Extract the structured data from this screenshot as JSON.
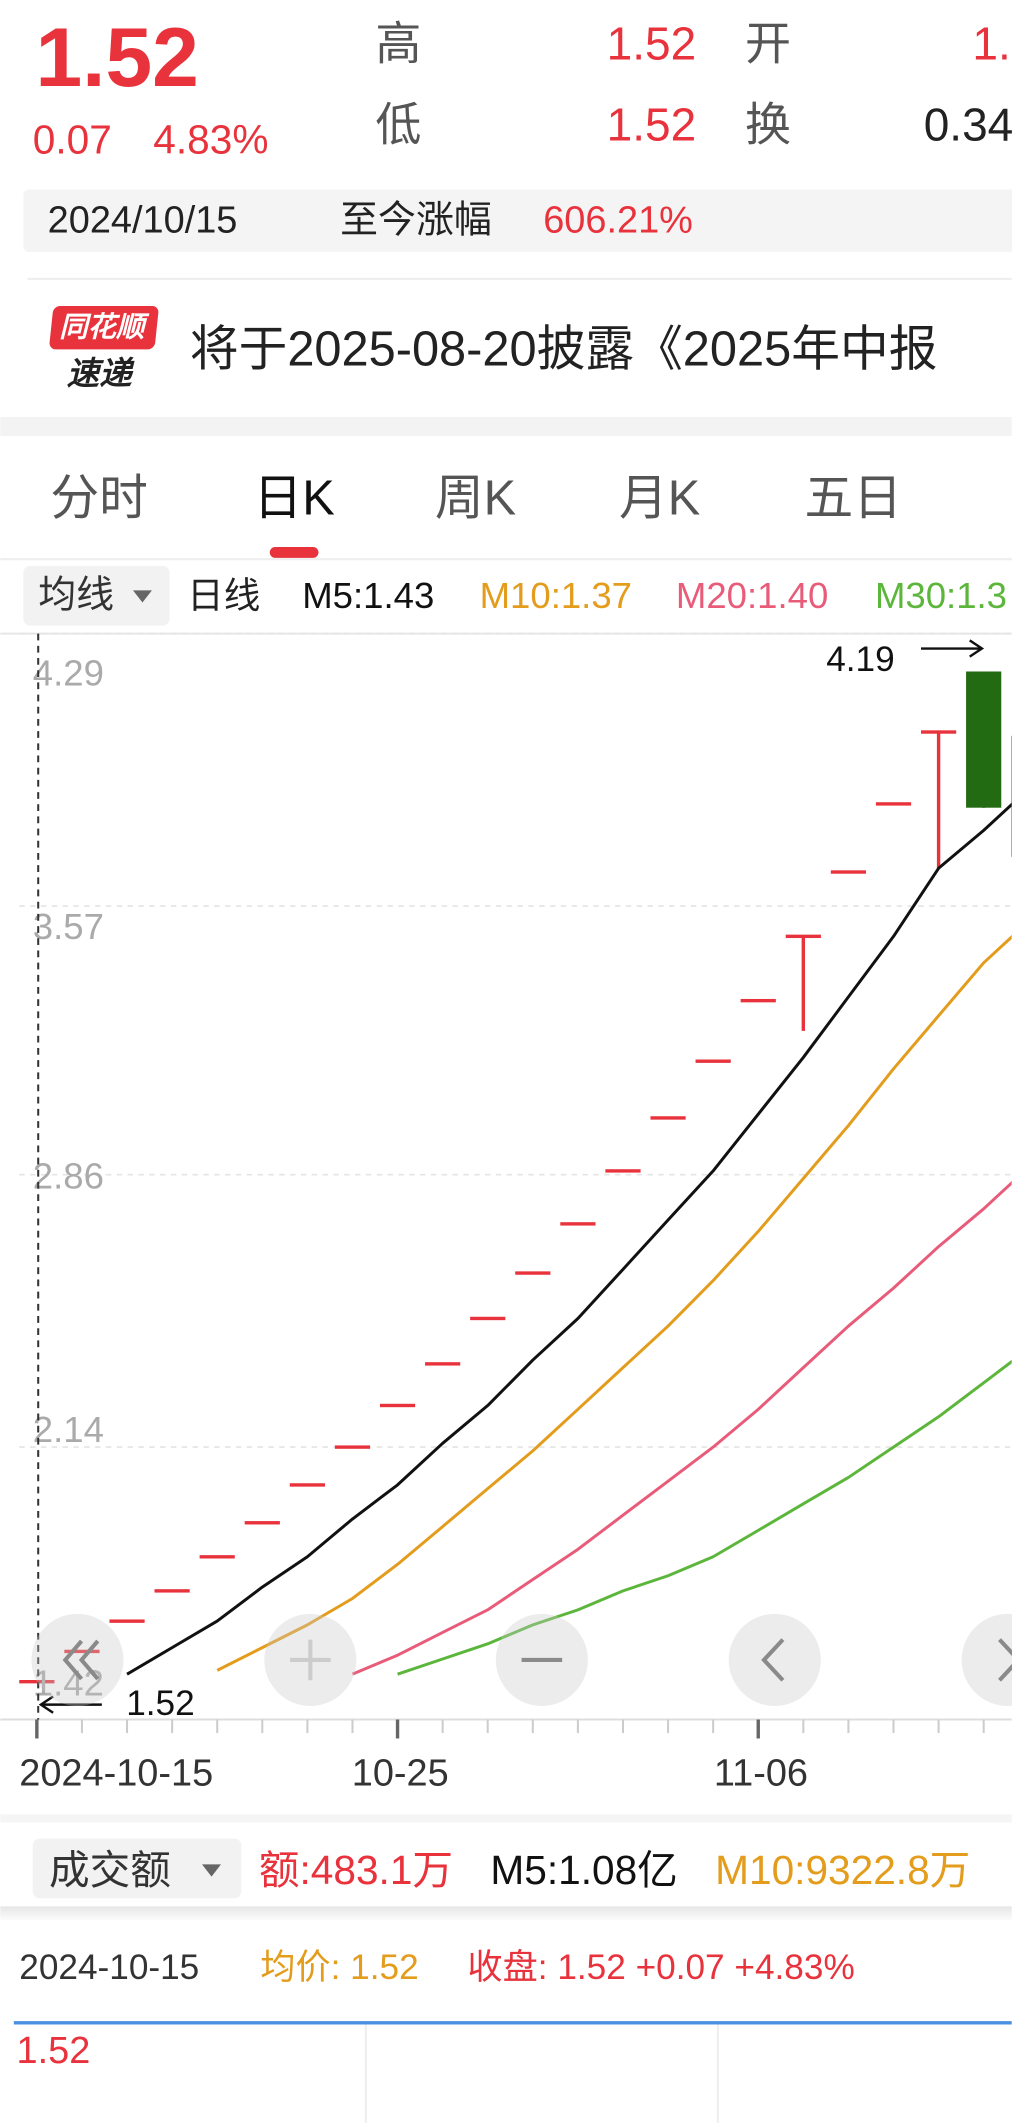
{
  "quote": {
    "price": "1.52",
    "change": "0.07",
    "change_pct": "4.83%",
    "high_label": "高",
    "high": "1.52",
    "open_label": "开",
    "open": "1.",
    "low_label": "低",
    "low": "1.52",
    "turnover_label": "换",
    "turnover": "0.34"
  },
  "since": {
    "date": "2024/10/15",
    "label": "至今涨幅",
    "value": "606.21%"
  },
  "news": {
    "logo_top": "同花顺",
    "logo_bottom": "速递",
    "text": "将于2025-08-20披露《2025年中报"
  },
  "tabs": [
    "分时",
    "日K",
    "周K",
    "月K",
    "五日"
  ],
  "ma_bar": {
    "button": "均线",
    "period": "日线",
    "m5": "M5:1.43",
    "m10": "M10:1.37",
    "m20": "M20:1.40",
    "m30": "M30:1.3"
  },
  "chart_data": {
    "type": "candlestick",
    "categories": [
      "2024-10-15",
      null,
      null,
      null,
      null,
      null,
      null,
      null,
      "10-25",
      null,
      null,
      null,
      null,
      null,
      null,
      null,
      "11-06",
      null,
      null,
      null,
      null,
      null,
      null
    ],
    "open": [
      1.52,
      1.6,
      1.68,
      1.76,
      1.85,
      1.94,
      2.04,
      2.14,
      2.25,
      2.36,
      2.48,
      2.6,
      2.73,
      2.87,
      3.01,
      3.16,
      3.32,
      3.49,
      3.66,
      3.84,
      4.03,
      4.19,
      3.7
    ],
    "high": [
      1.52,
      1.6,
      1.68,
      1.76,
      1.85,
      1.94,
      2.04,
      2.14,
      2.25,
      2.36,
      2.48,
      2.6,
      2.73,
      2.87,
      3.01,
      3.16,
      3.32,
      3.49,
      3.66,
      3.84,
      4.03,
      4.19,
      4.02
    ],
    "low": [
      1.52,
      1.6,
      1.68,
      1.76,
      1.85,
      1.94,
      2.04,
      2.14,
      2.25,
      2.36,
      2.48,
      2.6,
      2.73,
      2.87,
      3.01,
      3.16,
      3.32,
      3.24,
      3.66,
      3.84,
      3.67,
      3.83,
      3.67
    ],
    "close": [
      1.52,
      1.6,
      1.68,
      1.76,
      1.85,
      1.94,
      2.04,
      2.14,
      2.25,
      2.36,
      2.48,
      2.6,
      2.73,
      2.87,
      3.01,
      3.16,
      3.32,
      3.49,
      3.66,
      3.84,
      4.03,
      3.83,
      4.02
    ],
    "up_color": "#e8323c",
    "down_color": "#236b12",
    "lines": [
      {
        "color": "#111111",
        "values": [
          null,
          null,
          1.54,
          1.61,
          1.68,
          1.77,
          1.85,
          1.95,
          2.04,
          2.15,
          2.25,
          2.37,
          2.48,
          2.61,
          2.74,
          2.87,
          3.02,
          3.17,
          3.33,
          3.49,
          3.67,
          3.77,
          3.88
        ]
      },
      {
        "color": "#e39c1c",
        "values": [
          null,
          null,
          null,
          null,
          1.55,
          1.61,
          1.67,
          1.74,
          1.83,
          1.93,
          2.03,
          2.13,
          2.24,
          2.35,
          2.46,
          2.58,
          2.71,
          2.85,
          2.99,
          3.14,
          3.28,
          3.42,
          3.53
        ]
      },
      {
        "color": "#e85c7a",
        "values": [
          null,
          null,
          null,
          null,
          null,
          null,
          null,
          1.54,
          1.59,
          1.65,
          1.71,
          1.79,
          1.87,
          1.96,
          2.05,
          2.14,
          2.24,
          2.35,
          2.46,
          2.56,
          2.67,
          2.77,
          2.88
        ]
      },
      {
        "color": "#5db63c",
        "values": [
          null,
          null,
          null,
          null,
          null,
          null,
          null,
          null,
          1.54,
          1.58,
          1.62,
          1.67,
          1.71,
          1.76,
          1.8,
          1.85,
          1.92,
          1.99,
          2.06,
          2.14,
          2.22,
          2.31,
          2.4
        ]
      }
    ],
    "ylim": [
      1.42,
      4.29
    ],
    "yticks": [
      4.29,
      3.57,
      2.86,
      2.14,
      1.42
    ],
    "grid": true,
    "annotations": [
      "4.19",
      "1.52"
    ]
  },
  "volume_bar": {
    "button": "成交额",
    "amount": "额:483.1万",
    "m5": "M5:1.08亿",
    "m10": "M10:9322.8万"
  },
  "tooltip": {
    "date": "2024-10-15",
    "avg": "均价: 1.52",
    "close": "收盘: 1.52 +0.07 +4.83%"
  },
  "intraday": {
    "price": "1.52"
  }
}
